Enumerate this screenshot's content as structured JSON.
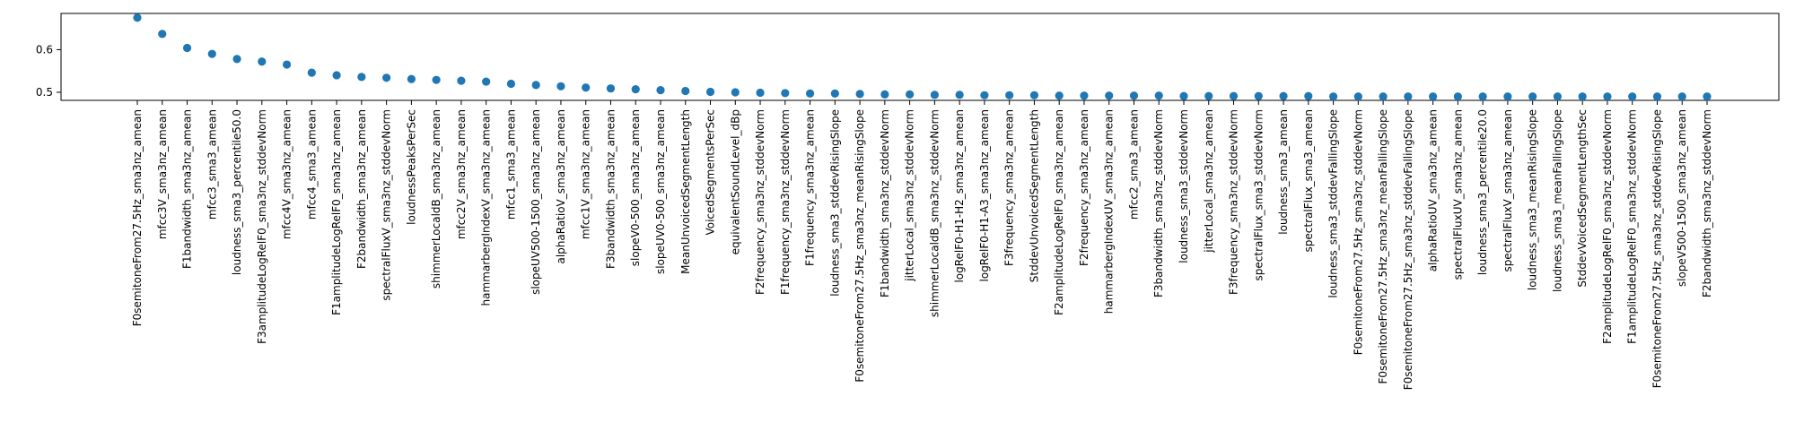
{
  "chart_data": {
    "type": "scatter",
    "title": "",
    "xlabel": "",
    "ylabel": "",
    "ylim": [
      0.481,
      0.685
    ],
    "yticks": [
      0.5,
      0.6
    ],
    "ytick_labels": [
      "0.5",
      "0.6"
    ],
    "grid": false,
    "legend": "none",
    "marker_color": "#1f77b4",
    "categories": [
      "F0semitoneFrom27.5Hz_sma3nz_amean",
      "mfcc3V_sma3nz_amean",
      "F1bandwidth_sma3nz_amean",
      "mfcc3_sma3_amean",
      "loudness_sma3_percentile50.0",
      "F3amplitudeLogRelF0_sma3nz_stddevNorm",
      "mfcc4V_sma3nz_amean",
      "mfcc4_sma3_amean",
      "F1amplitudeLogRelF0_sma3nz_amean",
      "F2bandwidth_sma3nz_amean",
      "spectralFluxV_sma3nz_stddevNorm",
      "loudnessPeaksPerSec",
      "shimmerLocaldB_sma3nz_amean",
      "mfcc2V_sma3nz_amean",
      "hammarbergIndexV_sma3nz_amean",
      "mfcc1_sma3_amean",
      "slopeUV500-1500_sma3nz_amean",
      "alphaRatioV_sma3nz_amean",
      "mfcc1V_sma3nz_amean",
      "F3bandwidth_sma3nz_amean",
      "slopeV0-500_sma3nz_amean",
      "slopeUV0-500_sma3nz_amean",
      "MeanUnvoicedSegmentLength",
      "VoicedSegmentsPerSec",
      "equivalentSoundLevel_dBp",
      "F2frequency_sma3nz_stddevNorm",
      "F1frequency_sma3nz_stddevNorm",
      "F1frequency_sma3nz_amean",
      "loudness_sma3_stddevRisingSlope",
      "F0semitoneFrom27.5Hz_sma3nz_meanRisingSlope",
      "F1bandwidth_sma3nz_stddevNorm",
      "jitterLocal_sma3nz_stddevNorm",
      "shimmerLocaldB_sma3nz_stddevNorm",
      "logRelF0-H1-H2_sma3nz_amean",
      "logRelF0-H1-A3_sma3nz_amean",
      "F3frequency_sma3nz_amean",
      "StddevUnvoicedSegmentLength",
      "F2amplitudeLogRelF0_sma3nz_amean",
      "F2frequency_sma3nz_amean",
      "hammarbergIndexUV_sma3nz_amean",
      "mfcc2_sma3_amean",
      "F3bandwidth_sma3nz_stddevNorm",
      "loudness_sma3_stddevNorm",
      "jitterLocal_sma3nz_amean",
      "F3frequency_sma3nz_stddevNorm",
      "spectralFlux_sma3_stddevNorm",
      "loudness_sma3_amean",
      "spectralFlux_sma3_amean",
      "loudness_sma3_stddevFallingSlope",
      "F0semitoneFrom27.5Hz_sma3nz_stddevNorm",
      "F0semitoneFrom27.5Hz_sma3nz_meanFallingSlope",
      "F0semitoneFrom27.5Hz_sma3nz_stddevFallingSlope",
      "alphaRatioUV_sma3nz_amean",
      "spectralFluxUV_sma3nz_amean",
      "loudness_sma3_percentile20.0",
      "spectralFluxV_sma3nz_amean",
      "loudness_sma3_meanRisingSlope",
      "loudness_sma3_meanFallingSlope",
      "StddevVoicedSegmentLengthSec",
      "F2amplitudeLogRelF0_sma3nz_stddevNorm",
      "F1amplitudeLogRelF0_sma3nz_stddevNorm",
      "F0semitoneFrom27.5Hz_sma3nz_stddevRisingSlope",
      "slopeV500-1500_sma3nz_amean",
      "F2bandwidth_sma3nz_stddevNorm"
    ],
    "values": [
      0.675,
      0.637,
      0.604,
      0.59,
      0.578,
      0.572,
      0.565,
      0.546,
      0.54,
      0.536,
      0.534,
      0.531,
      0.529,
      0.527,
      0.525,
      0.52,
      0.517,
      0.514,
      0.511,
      0.509,
      0.507,
      0.505,
      0.503,
      0.501,
      0.5,
      0.499,
      0.498,
      0.497,
      0.497,
      0.496,
      0.495,
      0.495,
      0.494,
      0.494,
      0.493,
      0.493,
      0.493,
      0.492,
      0.492,
      0.492,
      0.492,
      0.492,
      0.491,
      0.491,
      0.491,
      0.491,
      0.491,
      0.491,
      0.49,
      0.49,
      0.49,
      0.49,
      0.49,
      0.49,
      0.49,
      0.49,
      0.49,
      0.49,
      0.49,
      0.49,
      0.49,
      0.49,
      0.49,
      0.49
    ]
  }
}
